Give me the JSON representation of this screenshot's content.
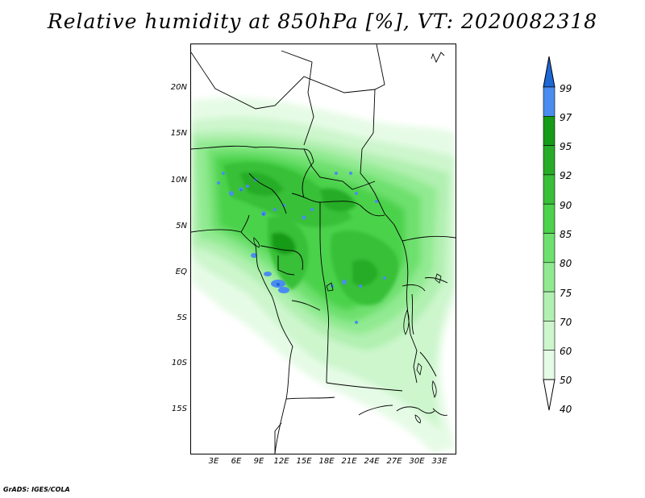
{
  "title": "Relative humidity at 850hPa [%], VT: 2020082318",
  "credit": "GrADS: IGES/COLA",
  "lat_labels": [
    "20N",
    "15N",
    "10N",
    "5N",
    "EQ",
    "5S",
    "10S",
    "15S"
  ],
  "lon_labels": [
    "3E",
    "6E",
    "9E",
    "12E",
    "15E",
    "18E",
    "21E",
    "24E",
    "27E",
    "30E",
    "33E"
  ],
  "colorbar": {
    "levels": [
      "99",
      "97",
      "95",
      "92",
      "90",
      "85",
      "80",
      "75",
      "70",
      "60",
      "50",
      "40"
    ],
    "colors": [
      "#1d68d6",
      "#4a8cef",
      "#169b18",
      "#27ac27",
      "#38c038",
      "#4cd24c",
      "#6ee06e",
      "#91ea91",
      "#b1f0b1",
      "#cdf6cd",
      "#e6fbe6",
      "#ffffff"
    ]
  }
}
